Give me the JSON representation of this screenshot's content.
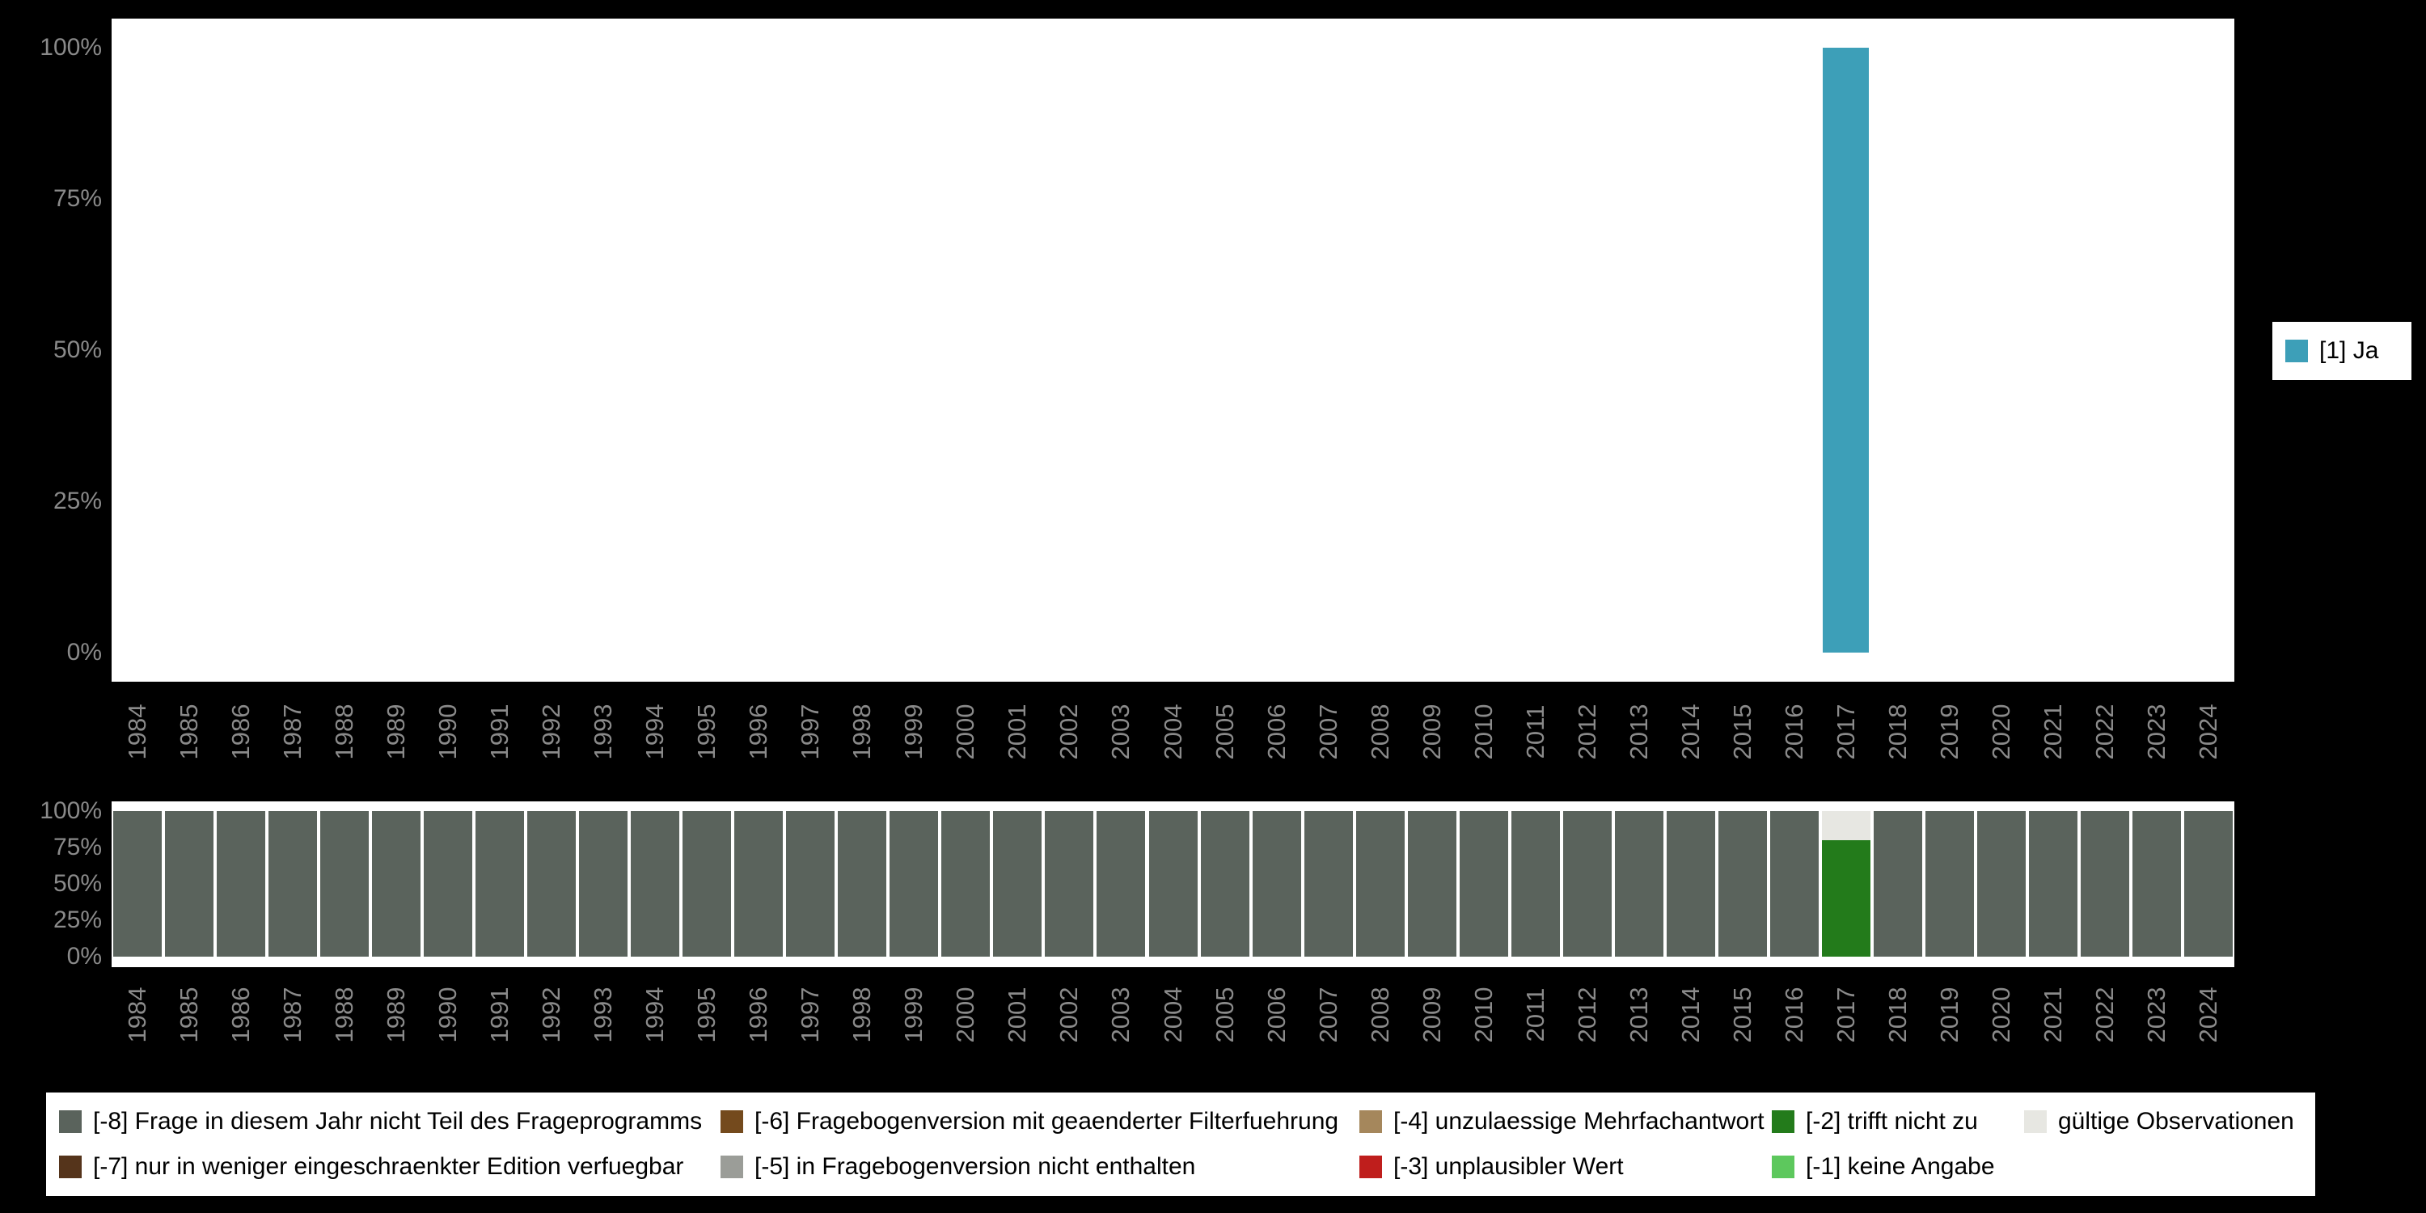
{
  "chart_data": [
    {
      "id": "main-variable-chart",
      "type": "bar",
      "title": "",
      "xlabel": "",
      "ylabel": "",
      "ylim": [
        0,
        100
      ],
      "grid": false,
      "legend_position": "right",
      "yticks": [
        "0%",
        "25%",
        "50%",
        "75%",
        "100%"
      ],
      "categories": [
        "1984",
        "1985",
        "1986",
        "1987",
        "1988",
        "1989",
        "1990",
        "1991",
        "1992",
        "1993",
        "1994",
        "1995",
        "1996",
        "1997",
        "1998",
        "1999",
        "2000",
        "2001",
        "2002",
        "2003",
        "2004",
        "2005",
        "2006",
        "2007",
        "2008",
        "2009",
        "2010",
        "2011",
        "2012",
        "2013",
        "2014",
        "2015",
        "2016",
        "2017",
        "2018",
        "2019",
        "2020",
        "2021",
        "2022",
        "2023",
        "2024"
      ],
      "series": [
        {
          "name": "[1] Ja",
          "color": "#3d9fb8",
          "values": [
            0,
            0,
            0,
            0,
            0,
            0,
            0,
            0,
            0,
            0,
            0,
            0,
            0,
            0,
            0,
            0,
            0,
            0,
            0,
            0,
            0,
            0,
            0,
            0,
            0,
            0,
            0,
            0,
            0,
            0,
            0,
            0,
            0,
            100,
            0,
            0,
            0,
            0,
            0,
            0,
            0
          ]
        }
      ]
    },
    {
      "id": "missing-values-chart",
      "type": "stacked-bar",
      "title": "",
      "xlabel": "",
      "ylabel": "",
      "ylim": [
        0,
        100
      ],
      "grid": false,
      "legend_position": "bottom",
      "yticks": [
        "0%",
        "25%",
        "50%",
        "75%",
        "100%"
      ],
      "categories": [
        "1984",
        "1985",
        "1986",
        "1987",
        "1988",
        "1989",
        "1990",
        "1991",
        "1992",
        "1993",
        "1994",
        "1995",
        "1996",
        "1997",
        "1998",
        "1999",
        "2000",
        "2001",
        "2002",
        "2003",
        "2004",
        "2005",
        "2006",
        "2007",
        "2008",
        "2009",
        "2010",
        "2011",
        "2012",
        "2013",
        "2014",
        "2015",
        "2016",
        "2017",
        "2018",
        "2019",
        "2020",
        "2021",
        "2022",
        "2023",
        "2024"
      ],
      "series": [
        {
          "name": "[-8] Frage in diesem Jahr nicht Teil des Frageprogramms",
          "color": "#5a635c",
          "values": [
            100,
            100,
            100,
            100,
            100,
            100,
            100,
            100,
            100,
            100,
            100,
            100,
            100,
            100,
            100,
            100,
            100,
            100,
            100,
            100,
            100,
            100,
            100,
            100,
            100,
            100,
            100,
            100,
            100,
            100,
            100,
            100,
            100,
            0,
            100,
            100,
            100,
            100,
            100,
            100,
            100
          ]
        },
        {
          "name": "[-2] trifft nicht zu",
          "color": "#237b1b",
          "values": [
            0,
            0,
            0,
            0,
            0,
            0,
            0,
            0,
            0,
            0,
            0,
            0,
            0,
            0,
            0,
            0,
            0,
            0,
            0,
            0,
            0,
            0,
            0,
            0,
            0,
            0,
            0,
            0,
            0,
            0,
            0,
            0,
            0,
            80,
            0,
            0,
            0,
            0,
            0,
            0,
            0
          ]
        },
        {
          "name": "gültige Observationen",
          "color": "#e7e7e2",
          "values": [
            0,
            0,
            0,
            0,
            0,
            0,
            0,
            0,
            0,
            0,
            0,
            0,
            0,
            0,
            0,
            0,
            0,
            0,
            0,
            0,
            0,
            0,
            0,
            0,
            0,
            0,
            0,
            0,
            0,
            0,
            0,
            0,
            0,
            20,
            0,
            0,
            0,
            0,
            0,
            0,
            0
          ]
        }
      ]
    }
  ],
  "legend_right": {
    "items": [
      {
        "label": "[1] Ja",
        "color": "#3d9fb8"
      }
    ]
  },
  "legend_bottom": {
    "items": [
      {
        "label": "[-8] Frage in diesem Jahr nicht Teil des Frageprogramms",
        "color": "#5a635c"
      },
      {
        "label": "[-7] nur in weniger eingeschraenkter Edition verfuegbar",
        "color": "#55341b"
      },
      {
        "label": "[-6] Fragebogenversion mit geaenderter Filterfuehrung",
        "color": "#744a1d"
      },
      {
        "label": "[-5] in Fragebogenversion nicht enthalten",
        "color": "#9b9d98"
      },
      {
        "label": "[-4] unzulaessige Mehrfachantwort",
        "color": "#a5875c"
      },
      {
        "label": "[-3] unplausibler Wert",
        "color": "#bf1e1c"
      },
      {
        "label": "[-2] trifft nicht zu",
        "color": "#237b1b"
      },
      {
        "label": "[-1] keine Angabe",
        "color": "#5dc85d"
      },
      {
        "label": "gültige Observationen",
        "color": "#e7e7e2"
      }
    ]
  },
  "colors": {
    "background": "#000000",
    "plot_background": "#ffffff",
    "axis_text": "#8a8a8a"
  }
}
